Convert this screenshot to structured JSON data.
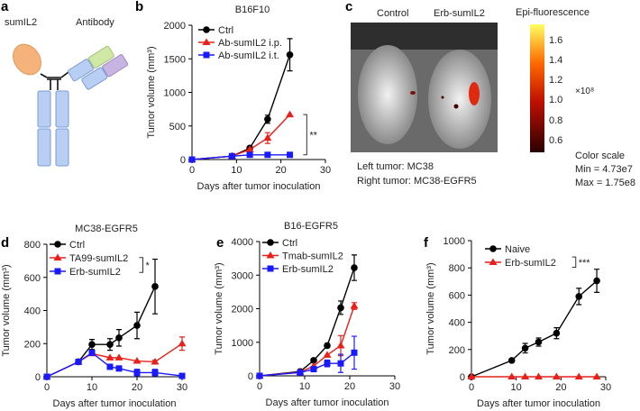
{
  "panel_a": {
    "letter": "a",
    "sumil2_label": "sumIL2",
    "antibody_label": "Antibody",
    "colors": {
      "sumil2": "#f5b27a",
      "heavy": "#a9c4ef",
      "vl_green": "#cfe8a6",
      "vl_purple": "#c7b4e3"
    }
  },
  "panel_c": {
    "letter": "c",
    "control_label": "Control",
    "treated_label": "Erb-sumIL2",
    "colorbar_title": "Epi-fluorescence",
    "colorbar_ticks": [
      "1.6",
      "1.4",
      "1.2",
      "1.0",
      "0.8",
      "0.6"
    ],
    "colorbar_unit": "×10⁸",
    "left_tumor": "Left tumor: MC38",
    "right_tumor": "Right tumor: MC38-EGFR5",
    "color_scale": "Color scale",
    "min": "Min = 4.73e7",
    "max": "Max = 1.75e8"
  },
  "chart_data": [
    {
      "panel": "b",
      "type": "line",
      "title": "B16F10",
      "xlabel": "Days after tumor inoculation",
      "ylabel": "Tumor volume (mm³)",
      "xlim": [
        0,
        30
      ],
      "ylim": [
        0,
        2000
      ],
      "xticks": [
        0,
        10,
        20,
        30
      ],
      "yticks": [
        0,
        500,
        1000,
        1500,
        2000
      ],
      "series": [
        {
          "name": "Ctrl",
          "color": "#000000",
          "marker": "circle",
          "x": [
            0,
            9,
            13,
            17,
            22
          ],
          "y": [
            0,
            50,
            170,
            600,
            1560
          ],
          "err": [
            0,
            0,
            0,
            60,
            240
          ]
        },
        {
          "name": "Ab-sumIL2 i.p.",
          "color": "#e8201c",
          "marker": "triangle",
          "x": [
            0,
            9,
            13,
            17,
            22
          ],
          "y": [
            0,
            50,
            150,
            320,
            670
          ],
          "err": [
            0,
            0,
            0,
            80,
            0
          ]
        },
        {
          "name": "Ab-sumIL2 i.t.",
          "color": "#1a1aff",
          "marker": "square",
          "x": [
            0,
            9,
            13,
            17,
            22
          ],
          "y": [
            0,
            50,
            70,
            70,
            70
          ],
          "err": [
            0,
            0,
            0,
            0,
            0
          ]
        }
      ],
      "significance": {
        "label": "**",
        "x": 25,
        "y": [
          70,
          670
        ]
      }
    },
    {
      "panel": "d",
      "type": "line",
      "title": "MC38-EGFR5",
      "xlabel": "Days after tumor inoculation",
      "ylabel": "Tumor volume (mm³)",
      "xlim": [
        0,
        30
      ],
      "ylim": [
        0,
        800
      ],
      "xticks": [
        0,
        10,
        20,
        30
      ],
      "yticks": [
        0,
        200,
        400,
        600,
        800
      ],
      "series": [
        {
          "name": "Ctrl",
          "color": "#000000",
          "marker": "circle",
          "x": [
            0,
            7,
            10,
            14,
            16,
            20,
            24
          ],
          "y": [
            0,
            90,
            195,
            195,
            235,
            310,
            545
          ],
          "err": [
            0,
            0,
            30,
            35,
            50,
            80,
            165
          ]
        },
        {
          "name": "TA99-sumIL2",
          "color": "#e8201c",
          "marker": "triangle",
          "x": [
            0,
            7,
            10,
            14,
            16,
            20,
            24,
            30
          ],
          "y": [
            0,
            90,
            140,
            115,
            115,
            95,
            90,
            200
          ],
          "err": [
            0,
            0,
            0,
            0,
            0,
            0,
            10,
            40
          ]
        },
        {
          "name": "Erb-sumIL2",
          "color": "#1a1aff",
          "marker": "square",
          "x": [
            0,
            7,
            10,
            14,
            16,
            20,
            24,
            30
          ],
          "y": [
            0,
            90,
            145,
            60,
            50,
            25,
            25,
            5
          ],
          "err": [
            0,
            0,
            0,
            0,
            0,
            20,
            20,
            0
          ]
        }
      ],
      "significance": {
        "label": "*",
        "x": 20.5,
        "y": [
          630,
          720
        ]
      }
    },
    {
      "panel": "e",
      "type": "line",
      "title": "B16-EGFR5",
      "xlabel": "Days after tumor inoculation",
      "ylabel": "Tumor volume (mm³)",
      "xlim": [
        0,
        30
      ],
      "ylim": [
        0,
        4000
      ],
      "xticks": [
        0,
        10,
        20,
        30
      ],
      "yticks": [
        0,
        1000,
        2000,
        3000,
        4000
      ],
      "series": [
        {
          "name": "Ctrl",
          "color": "#000000",
          "marker": "circle",
          "x": [
            0,
            9,
            12,
            15,
            18,
            21
          ],
          "y": [
            0,
            130,
            460,
            900,
            2030,
            3220
          ],
          "err": [
            0,
            0,
            0,
            60,
            200,
            380
          ]
        },
        {
          "name": "Tmab-sumIL2",
          "color": "#e8201c",
          "marker": "triangle",
          "x": [
            0,
            9,
            12,
            15,
            18,
            21
          ],
          "y": [
            0,
            110,
            290,
            620,
            900,
            2080
          ],
          "err": [
            0,
            0,
            0,
            0,
            300,
            100
          ]
        },
        {
          "name": "Erb-sumIL2",
          "color": "#1a1aff",
          "marker": "square",
          "x": [
            0,
            9,
            12,
            15,
            18,
            21
          ],
          "y": [
            0,
            100,
            200,
            370,
            370,
            690
          ],
          "err": [
            0,
            0,
            0,
            100,
            270,
            490
          ]
        }
      ]
    },
    {
      "panel": "f",
      "type": "line",
      "title": "",
      "xlabel": "Days after tumor inoculation",
      "ylabel": "Tumor volume (mm³)",
      "xlim": [
        0,
        30
      ],
      "ylim": [
        0,
        1000
      ],
      "xticks": [
        0,
        10,
        20,
        30
      ],
      "yticks": [
        0,
        200,
        400,
        600,
        800,
        1000
      ],
      "series": [
        {
          "name": "Naive",
          "color": "#000000",
          "marker": "circle",
          "x": [
            0,
            9,
            12,
            15,
            19,
            24,
            28
          ],
          "y": [
            0,
            120,
            210,
            255,
            320,
            590,
            705
          ],
          "err": [
            0,
            0,
            35,
            30,
            40,
            60,
            85
          ]
        },
        {
          "name": "Erb-sumIL2",
          "color": "#e8201c",
          "marker": "triangle",
          "x": [
            0,
            9,
            12,
            15,
            19,
            24,
            28
          ],
          "y": [
            0,
            0,
            0,
            0,
            0,
            0,
            0
          ],
          "err": [
            0,
            0,
            0,
            0,
            0,
            0,
            0
          ]
        }
      ],
      "significance": {
        "label": "***",
        "x": 22.5,
        "y": [
          805,
          880
        ]
      }
    }
  ]
}
